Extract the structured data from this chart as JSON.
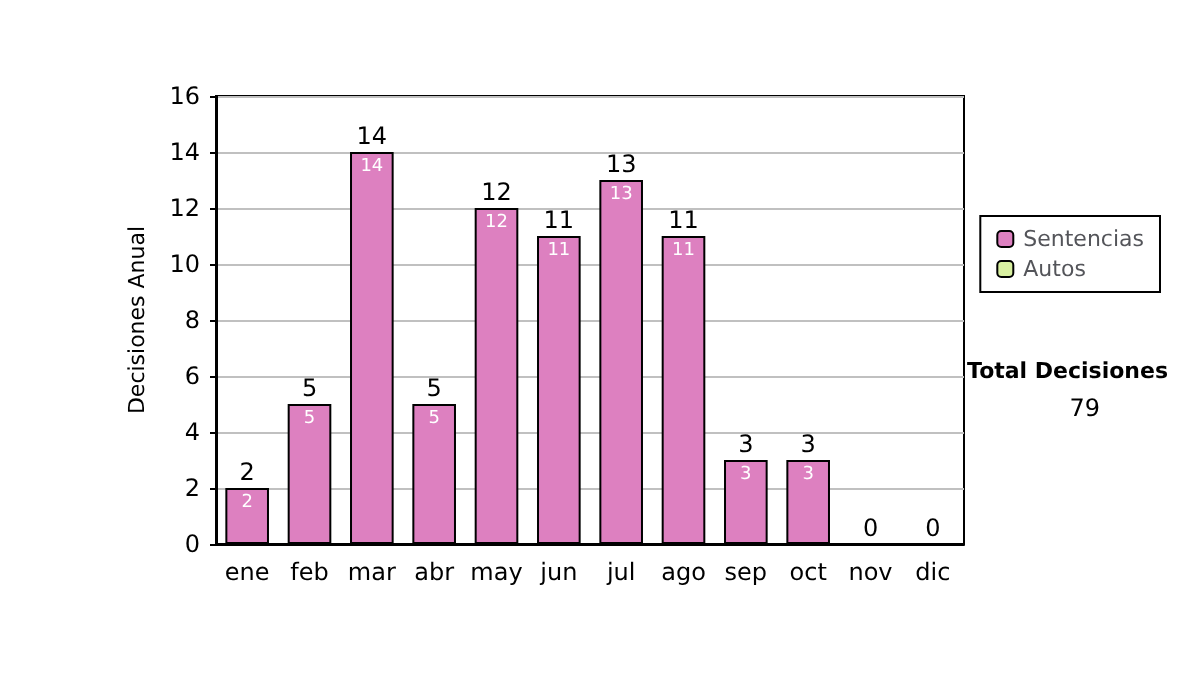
{
  "chart_data": {
    "type": "bar",
    "ylabel": "Decisiones Anual",
    "categories": [
      "ene",
      "feb",
      "mar",
      "abr",
      "may",
      "jun",
      "jul",
      "ago",
      "sep",
      "oct",
      "nov",
      "dic"
    ],
    "stacked": true,
    "series": [
      {
        "name": "Sentencias",
        "color": "#dd80c0",
        "values": [
          2,
          5,
          14,
          5,
          12,
          11,
          13,
          11,
          3,
          3,
          0,
          0
        ],
        "value_labels": [
          "2",
          "5",
          "14",
          "5",
          "12",
          "11",
          "13",
          "11",
          "3",
          "3",
          null,
          null
        ]
      },
      {
        "name": "Autos",
        "color": "#d8f0a0",
        "values": [
          0,
          0,
          0,
          0,
          0,
          0,
          0,
          0,
          0,
          0,
          0,
          0
        ]
      }
    ],
    "totals": [
      "2",
      "5",
      "14",
      "5",
      "12",
      "11",
      "13",
      "11",
      "3",
      "3",
      "0",
      "0"
    ],
    "ylim": [
      0,
      16
    ],
    "yticks": [
      0,
      2,
      4,
      6,
      8,
      10,
      12,
      14,
      16
    ],
    "grid": "y",
    "legend": "right",
    "annotations": [
      "Total Decisiones",
      "79"
    ]
  }
}
